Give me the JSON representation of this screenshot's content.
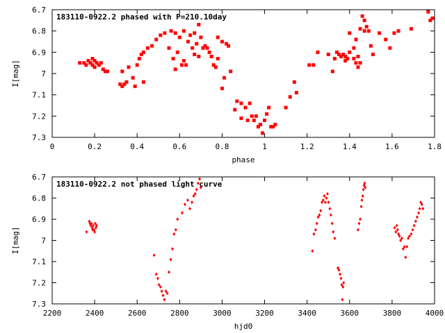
{
  "chart_data": [
    {
      "type": "scatter",
      "title": "183110-0922.2 phased with P=210.10day",
      "xlabel": "phase",
      "ylabel": "I[mag]",
      "xlim": [
        0,
        1.8
      ],
      "ylim": [
        6.7,
        7.3
      ],
      "y_inverted": true,
      "x_ticks": [
        "0",
        "0.2",
        "0.4",
        "0.6",
        "0.8",
        "1",
        "1.2",
        "1.4",
        "1.6",
        "1.8"
      ],
      "y_ticks": [
        "6.7",
        "6.8",
        "6.9",
        "7",
        "7.1",
        "7.2",
        "7.3"
      ],
      "grid": false,
      "marker_color": "#ff0000",
      "series": [
        {
          "points": [
            [
              0.13,
              6.95
            ],
            [
              0.15,
              6.95
            ],
            [
              0.16,
              6.96
            ],
            [
              0.17,
              6.94
            ],
            [
              0.18,
              6.95
            ],
            [
              0.19,
              6.96
            ],
            [
              0.19,
              6.93
            ],
            [
              0.2,
              6.94
            ],
            [
              0.2,
              6.97
            ],
            [
              0.21,
              6.95
            ],
            [
              0.22,
              6.96
            ],
            [
              0.23,
              6.95
            ],
            [
              0.24,
              6.98
            ],
            [
              0.25,
              6.99
            ],
            [
              0.26,
              6.99
            ],
            [
              0.32,
              7.05
            ],
            [
              0.33,
              7.06
            ],
            [
              0.33,
              6.99
            ],
            [
              0.34,
              7.05
            ],
            [
              0.35,
              7.04
            ],
            [
              0.36,
              6.97
            ],
            [
              0.38,
              7.02
            ],
            [
              0.39,
              7.06
            ],
            [
              0.4,
              6.96
            ],
            [
              0.41,
              6.93
            ],
            [
              0.42,
              6.91
            ],
            [
              0.43,
              6.9
            ],
            [
              0.43,
              7.04
            ],
            [
              0.45,
              6.88
            ],
            [
              0.47,
              6.87
            ],
            [
              0.49,
              6.84
            ],
            [
              0.51,
              6.82
            ],
            [
              0.53,
              6.81
            ],
            [
              0.55,
              6.88
            ],
            [
              0.56,
              6.8
            ],
            [
              0.57,
              6.93
            ],
            [
              0.58,
              6.98
            ],
            [
              0.58,
              6.81
            ],
            [
              0.59,
              6.9
            ],
            [
              0.6,
              6.83
            ],
            [
              0.61,
              6.96
            ],
            [
              0.62,
              6.94
            ],
            [
              0.62,
              6.8
            ],
            [
              0.63,
              6.96
            ],
            [
              0.64,
              6.85
            ],
            [
              0.65,
              6.82
            ],
            [
              0.66,
              6.88
            ],
            [
              0.67,
              6.91
            ],
            [
              0.67,
              6.81
            ],
            [
              0.68,
              6.86
            ],
            [
              0.69,
              6.77
            ],
            [
              0.69,
              6.92
            ],
            [
              0.7,
              6.83
            ],
            [
              0.71,
              6.88
            ],
            [
              0.72,
              6.87
            ],
            [
              0.73,
              6.88
            ],
            [
              0.74,
              6.9
            ],
            [
              0.75,
              6.92
            ],
            [
              0.76,
              6.96
            ],
            [
              0.77,
              6.97
            ],
            [
              0.78,
              6.83
            ],
            [
              0.78,
              6.93
            ],
            [
              0.8,
              6.85
            ],
            [
              0.8,
              7.07
            ],
            [
              0.81,
              7.02
            ],
            [
              0.82,
              6.86
            ],
            [
              0.83,
              6.87
            ],
            [
              0.84,
              6.99
            ],
            [
              0.86,
              7.17
            ],
            [
              0.87,
              7.13
            ],
            [
              0.89,
              7.14
            ],
            [
              0.89,
              7.21
            ],
            [
              0.91,
              7.16
            ],
            [
              0.92,
              7.22
            ],
            [
              0.93,
              7.14
            ],
            [
              0.94,
              7.2
            ],
            [
              0.95,
              7.22
            ],
            [
              0.96,
              7.2
            ],
            [
              0.97,
              7.25
            ],
            [
              0.98,
              7.24
            ],
            [
              0.99,
              7.28
            ],
            [
              1.0,
              7.22
            ],
            [
              1.01,
              7.19
            ],
            [
              1.02,
              7.16
            ],
            [
              1.03,
              7.25
            ],
            [
              1.04,
              7.25
            ],
            [
              1.05,
              7.24
            ],
            [
              1.1,
              7.16
            ],
            [
              1.12,
              7.11
            ],
            [
              1.14,
              7.04
            ],
            [
              1.15,
              7.09
            ],
            [
              1.21,
              6.96
            ],
            [
              1.23,
              6.96
            ],
            [
              1.25,
              6.9
            ],
            [
              1.3,
              6.91
            ],
            [
              1.32,
              6.99
            ],
            [
              1.33,
              6.93
            ],
            [
              1.34,
              6.9
            ],
            [
              1.35,
              6.91
            ],
            [
              1.36,
              6.92
            ],
            [
              1.37,
              6.91
            ],
            [
              1.38,
              6.92
            ],
            [
              1.38,
              6.94
            ],
            [
              1.39,
              6.93
            ],
            [
              1.4,
              6.9
            ],
            [
              1.4,
              6.81
            ],
            [
              1.42,
              6.88
            ],
            [
              1.42,
              6.93
            ],
            [
              1.43,
              6.95
            ],
            [
              1.43,
              6.84
            ],
            [
              1.44,
              6.92
            ],
            [
              1.44,
              6.97
            ],
            [
              1.45,
              6.79
            ],
            [
              1.45,
              6.95
            ],
            [
              1.46,
              6.73
            ],
            [
              1.47,
              6.75
            ],
            [
              1.47,
              6.8
            ],
            [
              1.48,
              6.78
            ],
            [
              1.49,
              6.8
            ],
            [
              1.5,
              6.87
            ],
            [
              1.51,
              6.91
            ],
            [
              1.54,
              6.81
            ],
            [
              1.57,
              6.84
            ],
            [
              1.59,
              6.88
            ],
            [
              1.61,
              6.81
            ],
            [
              1.63,
              6.8
            ],
            [
              1.69,
              6.79
            ],
            [
              1.77,
              6.71
            ],
            [
              1.78,
              6.75
            ],
            [
              1.79,
              6.74
            ]
          ]
        }
      ]
    },
    {
      "type": "scatter",
      "title": "183110-0922.2 not phased light curve",
      "xlabel": "hjd0",
      "ylabel": "I[mag]",
      "xlim": [
        2200,
        4000
      ],
      "ylim": [
        6.7,
        7.3
      ],
      "y_inverted": true,
      "x_ticks": [
        "2200",
        "2400",
        "2600",
        "2800",
        "3000",
        "3200",
        "3400",
        "3600",
        "3800",
        "4000"
      ],
      "y_ticks": [
        "6.7",
        "6.8",
        "6.9",
        "7",
        "7.1",
        "7.2",
        "7.3"
      ],
      "grid": false,
      "marker_color": "#ff0000",
      "series": [
        {
          "points": [
            [
              2362,
              6.96
            ],
            [
              2375,
              6.91
            ],
            [
              2378,
              6.92
            ],
            [
              2382,
              6.93
            ],
            [
              2385,
              6.92
            ],
            [
              2388,
              6.94
            ],
            [
              2391,
              6.95
            ],
            [
              2394,
              6.93
            ],
            [
              2397,
              6.95
            ],
            [
              2400,
              6.96
            ],
            [
              2403,
              6.92
            ],
            [
              2406,
              6.94
            ],
            [
              2409,
              6.93
            ],
            [
              2680,
              7.07
            ],
            [
              2690,
              7.16
            ],
            [
              2697,
              7.18
            ],
            [
              2703,
              7.21
            ],
            [
              2710,
              7.22
            ],
            [
              2716,
              7.24
            ],
            [
              2722,
              7.26
            ],
            [
              2728,
              7.28
            ],
            [
              2735,
              7.24
            ],
            [
              2742,
              7.25
            ],
            [
              2750,
              7.15
            ],
            [
              2758,
              7.09
            ],
            [
              2766,
              7.04
            ],
            [
              2774,
              6.97
            ],
            [
              2782,
              6.95
            ],
            [
              2790,
              6.9
            ],
            [
              2812,
              6.87
            ],
            [
              2825,
              6.83
            ],
            [
              2838,
              6.81
            ],
            [
              2848,
              6.85
            ],
            [
              2858,
              6.82
            ],
            [
              2866,
              6.79
            ],
            [
              2873,
              6.78
            ],
            [
              2880,
              6.76
            ],
            [
              2887,
              6.73
            ],
            [
              2894,
              6.71
            ],
            [
              2900,
              6.75
            ],
            [
              3425,
              7.05
            ],
            [
              3432,
              6.97
            ],
            [
              3440,
              6.95
            ],
            [
              3446,
              6.92
            ],
            [
              3452,
              6.89
            ],
            [
              3458,
              6.88
            ],
            [
              3464,
              6.86
            ],
            [
              3470,
              6.82
            ],
            [
              3476,
              6.81
            ],
            [
              3481,
              6.79
            ],
            [
              3486,
              6.82
            ],
            [
              3491,
              6.8
            ],
            [
              3496,
              6.78
            ],
            [
              3501,
              6.82
            ],
            [
              3507,
              6.85
            ],
            [
              3512,
              6.88
            ],
            [
              3518,
              6.92
            ],
            [
              3523,
              6.96
            ],
            [
              3530,
              6.99
            ],
            [
              3545,
              7.13
            ],
            [
              3550,
              7.14
            ],
            [
              3555,
              7.16
            ],
            [
              3560,
              7.18
            ],
            [
              3563,
              7.21
            ],
            [
              3566,
              7.28
            ],
            [
              3569,
              7.22
            ],
            [
              3572,
              7.2
            ],
            [
              3640,
              6.95
            ],
            [
              3645,
              6.92
            ],
            [
              3650,
              6.9
            ],
            [
              3655,
              6.84
            ],
            [
              3658,
              6.81
            ],
            [
              3662,
              6.79
            ],
            [
              3665,
              6.76
            ],
            [
              3668,
              6.74
            ],
            [
              3671,
              6.73
            ],
            [
              3674,
              6.75
            ],
            [
              3812,
              6.94
            ],
            [
              3818,
              6.96
            ],
            [
              3822,
              6.93
            ],
            [
              3826,
              6.95
            ],
            [
              3830,
              6.97
            ],
            [
              3835,
              6.98
            ],
            [
              3840,
              7.0
            ],
            [
              3846,
              6.99
            ],
            [
              3852,
              7.04
            ],
            [
              3858,
              7.03
            ],
            [
              3864,
              7.08
            ],
            [
              3870,
              7.03
            ],
            [
              3876,
              6.99
            ],
            [
              3882,
              6.98
            ],
            [
              3890,
              6.97
            ],
            [
              3897,
              6.95
            ],
            [
              3904,
              6.93
            ],
            [
              3911,
              6.91
            ],
            [
              3918,
              6.89
            ],
            [
              3925,
              6.87
            ],
            [
              3930,
              6.85
            ],
            [
              3935,
              6.82
            ],
            [
              3940,
              6.83
            ],
            [
              3945,
              6.85
            ]
          ]
        }
      ]
    }
  ]
}
